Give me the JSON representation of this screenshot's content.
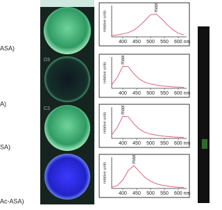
{
  "side_labels": [
    "ASA)",
    "A)",
    "SA)",
    "Ac-ASA)"
  ],
  "well_labels": [
    "D3",
    "C3"
  ],
  "chart_data": [
    {
      "type": "line",
      "ylabel": "relative units",
      "annotation": "max",
      "color": "#e0607a",
      "x": [
        360,
        380,
        400,
        420,
        440,
        460,
        480,
        500,
        520,
        540,
        560,
        580,
        600,
        620
      ],
      "values": [
        0.05,
        0.08,
        0.12,
        0.18,
        0.28,
        0.45,
        0.68,
        0.92,
        0.95,
        0.75,
        0.5,
        0.3,
        0.15,
        0.08
      ],
      "xlim": [
        360,
        630
      ],
      "ylim": [
        0,
        1.3
      ],
      "xticks": [
        400,
        450,
        500,
        550,
        {
          "value": 600,
          "label": "600 nm"
        }
      ]
    },
    {
      "type": "line",
      "ylabel": "relative units",
      "annotation": "max",
      "color": "#e0607a",
      "x": [
        360,
        380,
        400,
        420,
        440,
        460,
        480,
        500,
        520,
        540,
        560,
        580,
        600,
        620
      ],
      "values": [
        0.15,
        0.45,
        0.92,
        0.9,
        0.6,
        0.38,
        0.25,
        0.18,
        0.14,
        0.1,
        0.08,
        0.06,
        0.05,
        0.04
      ],
      "xlim": [
        360,
        630
      ],
      "ylim": [
        0,
        1.3
      ],
      "xticks": [
        400,
        450,
        500,
        550,
        {
          "value": 600,
          "label": "600 nm"
        }
      ]
    },
    {
      "type": "line",
      "ylabel": "relative units",
      "annotation": "max",
      "color": "#e0607a",
      "x": [
        360,
        380,
        400,
        420,
        440,
        460,
        480,
        500,
        520,
        540,
        560,
        580,
        600,
        620
      ],
      "values": [
        0.15,
        0.45,
        0.92,
        0.9,
        0.6,
        0.38,
        0.25,
        0.18,
        0.14,
        0.1,
        0.08,
        0.06,
        0.05,
        0.04
      ],
      "xlim": [
        360,
        630
      ],
      "ylim": [
        0,
        1.3
      ],
      "xticks": [
        400,
        450,
        500,
        550,
        {
          "value": 600,
          "label": "600 nm"
        }
      ]
    },
    {
      "type": "line",
      "ylabel": "relative units",
      "annotation": "max",
      "color": "#e0607a",
      "x": [
        360,
        380,
        400,
        420,
        440,
        460,
        480,
        500,
        520,
        540,
        560,
        580,
        600,
        620
      ],
      "values": [
        0.05,
        0.12,
        0.35,
        0.75,
        0.95,
        0.7,
        0.45,
        0.3,
        0.2,
        0.14,
        0.1,
        0.07,
        0.05,
        0.04
      ],
      "xlim": [
        360,
        630
      ],
      "ylim": [
        0,
        1.3
      ],
      "xticks": [
        400,
        450,
        500,
        550,
        {
          "value": 600,
          "label": "600 nm"
        }
      ]
    }
  ]
}
